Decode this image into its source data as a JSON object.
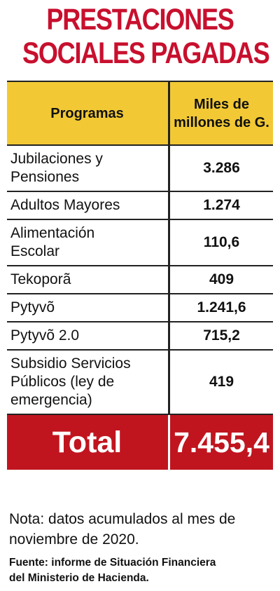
{
  "title": {
    "line1": "PRESTACIONES",
    "line2": "SOCIALES PAGADAS"
  },
  "table": {
    "header_program": "Programas",
    "header_value_line1": "Miles de",
    "header_value_line2": "millones de G.",
    "rows": [
      {
        "program_line1": "Jubilaciones y",
        "program_line2": "Pensiones",
        "program_line3": "",
        "value": "3.286"
      },
      {
        "program_line1": "Adultos Mayores",
        "program_line2": "",
        "program_line3": "",
        "value": "1.274"
      },
      {
        "program_line1": "Alimentación",
        "program_line2": "Escolar",
        "program_line3": "",
        "value": "110,6"
      },
      {
        "program_line1": "Tekoporã",
        "program_line2": "",
        "program_line3": "",
        "value": "409"
      },
      {
        "program_line1": "Pytyvõ",
        "program_line2": "",
        "program_line3": "",
        "value": "1.241,6"
      },
      {
        "program_line1": "Pytyvõ 2.0",
        "program_line2": "",
        "program_line3": "",
        "value": "715,2"
      },
      {
        "program_line1": "Subsidio Servicios",
        "program_line2": "Públicos (ley de",
        "program_line3": "emergencia)",
        "value": "419"
      }
    ],
    "total_label": "Total",
    "total_value": "7.455,4"
  },
  "note": {
    "line1": "Nota: datos acumulados al mes de",
    "line2": "noviembre de 2020."
  },
  "source": {
    "line1": "Fuente: informe de Situación Financiera",
    "line2": "del Ministerio de Hacienda."
  },
  "colors": {
    "title": "#c8102e",
    "header_bg": "#f2c935",
    "total_bg": "#c0151f"
  }
}
